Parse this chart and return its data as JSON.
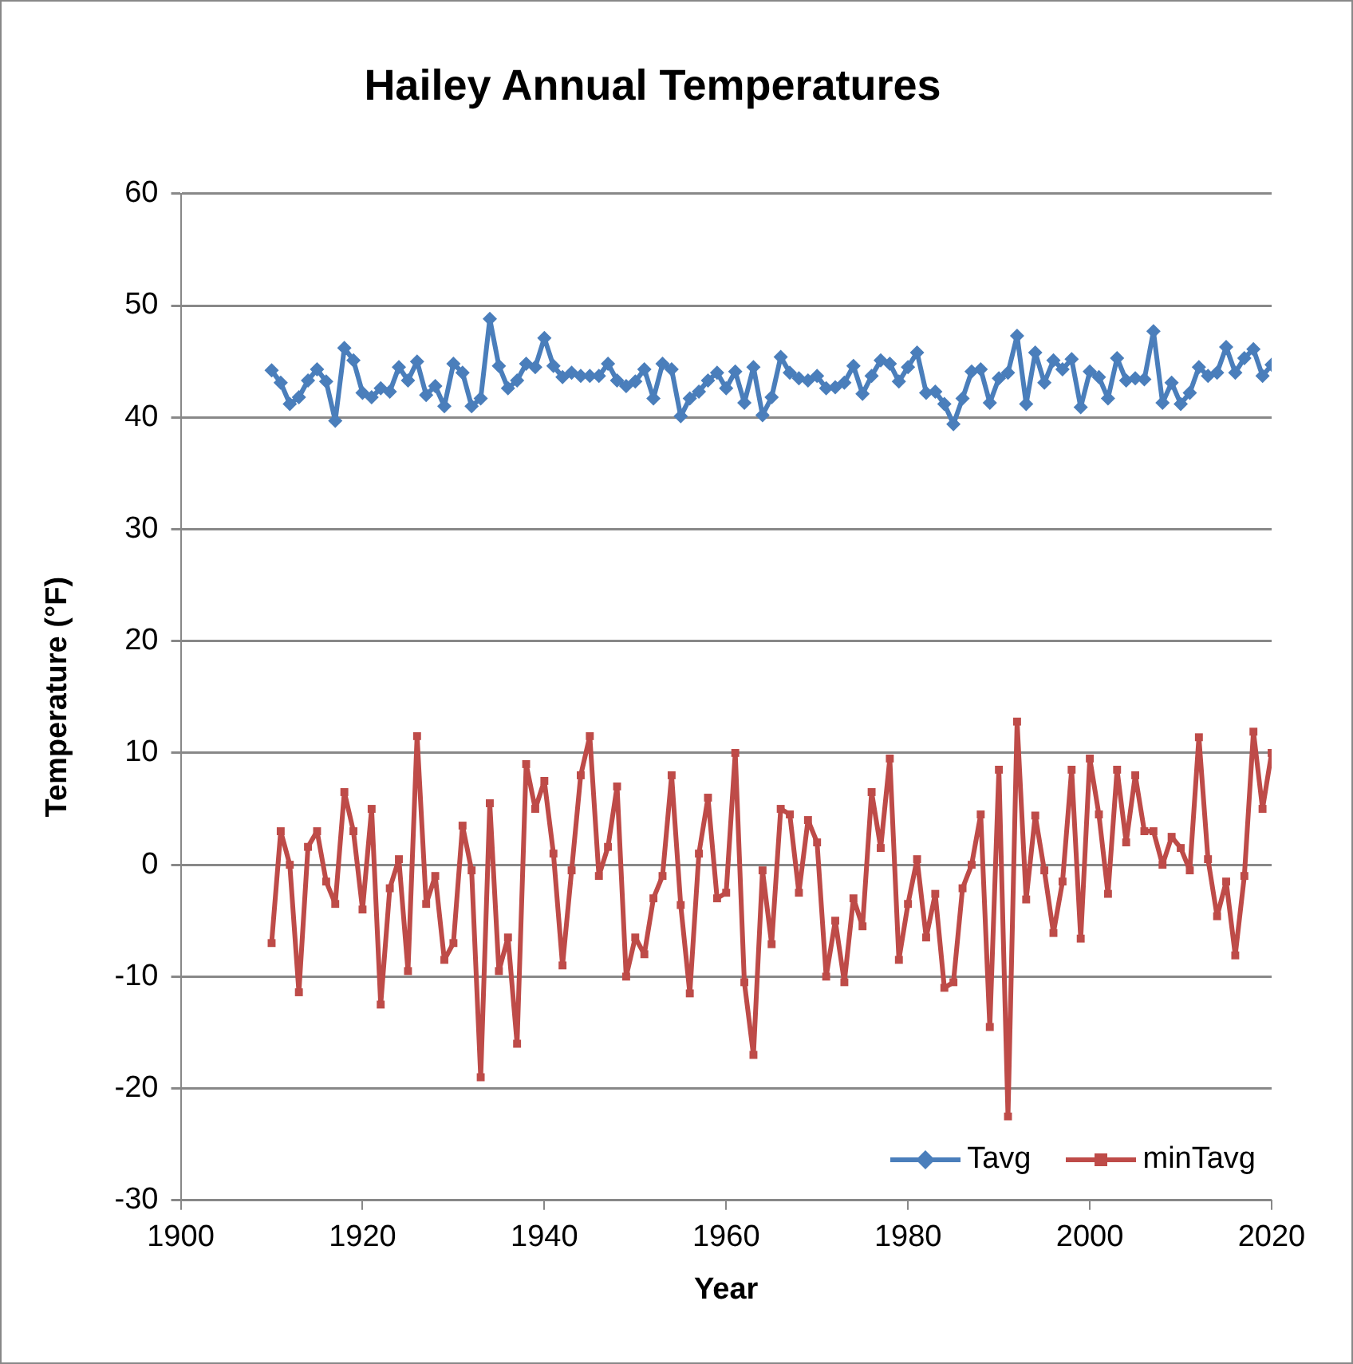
{
  "chart_data": {
    "type": "line",
    "title": "Hailey Annual Temperatures",
    "xlabel": "Year",
    "ylabel": "Temperature (°F)",
    "x": [
      1910,
      1911,
      1912,
      1913,
      1914,
      1915,
      1916,
      1917,
      1918,
      1919,
      1920,
      1921,
      1922,
      1923,
      1924,
      1925,
      1926,
      1927,
      1928,
      1929,
      1930,
      1931,
      1932,
      1933,
      1934,
      1935,
      1936,
      1937,
      1938,
      1939,
      1940,
      1941,
      1942,
      1943,
      1944,
      1945,
      1946,
      1947,
      1948,
      1949,
      1950,
      1951,
      1952,
      1953,
      1954,
      1955,
      1956,
      1957,
      1958,
      1959,
      1960,
      1961,
      1962,
      1963,
      1964,
      1965,
      1966,
      1967,
      1968,
      1969,
      1970,
      1971,
      1972,
      1973,
      1974,
      1975,
      1976,
      1977,
      1978,
      1979,
      1980,
      1981,
      1982,
      1983,
      1984,
      1985,
      1986,
      1987,
      1988,
      1989,
      1990,
      1991,
      1992,
      1993,
      1994,
      1995,
      1996,
      1997,
      1998,
      1999,
      2000,
      2001,
      2002,
      2003,
      2004,
      2005,
      2006,
      2007,
      2008,
      2009,
      2010,
      2011,
      2012,
      2013,
      2014,
      2015,
      2016,
      2017,
      2018,
      2019,
      2020
    ],
    "series": [
      {
        "name": "Tavg",
        "color": "#4a7ebb",
        "marker": "diamond",
        "values": [
          44.2,
          43.1,
          41.2,
          41.8,
          43.3,
          44.3,
          43.2,
          39.7,
          46.2,
          45.1,
          42.2,
          41.8,
          42.6,
          42.3,
          44.5,
          43.3,
          45.0,
          42.0,
          42.8,
          41.0,
          44.8,
          44.0,
          41.0,
          41.7,
          48.8,
          44.6,
          42.6,
          43.3,
          44.8,
          44.5,
          47.1,
          44.6,
          43.6,
          44.0,
          43.7,
          43.7,
          43.7,
          44.8,
          43.3,
          42.8,
          43.2,
          44.3,
          41.7,
          44.8,
          44.3,
          40.1,
          41.7,
          42.3,
          43.3,
          44.0,
          42.6,
          44.1,
          41.3,
          44.5,
          40.2,
          41.8,
          45.4,
          44.0,
          43.5,
          43.3,
          43.7,
          42.6,
          42.7,
          43.1,
          44.6,
          42.1,
          43.7,
          45.1,
          44.8,
          43.2,
          44.5,
          45.8,
          42.2,
          42.3,
          41.2,
          39.4,
          41.7,
          44.1,
          44.3,
          41.3,
          43.5,
          44.0,
          47.3,
          41.2,
          45.8,
          43.1,
          45.1,
          44.3,
          45.2,
          40.9,
          44.1,
          43.6,
          41.7,
          45.3,
          43.3,
          43.5,
          43.4,
          47.7,
          41.3,
          43.1,
          41.2,
          42.2,
          44.5,
          43.7,
          44.0,
          46.3,
          44.0,
          45.3,
          46.1,
          43.7,
          44.7
        ]
      },
      {
        "name": "minTavg",
        "color": "#be4b48",
        "marker": "square",
        "values": [
          -7.0,
          3.0,
          0,
          -11.4,
          1.6,
          3.0,
          -1.5,
          -3.5,
          6.5,
          3.0,
          -4.0,
          5.0,
          -12.5,
          -2.1,
          0.5,
          -9.5,
          11.5,
          -3.5,
          -1.0,
          -8.5,
          -7.0,
          3.5,
          -0.5,
          -19.0,
          5.5,
          -9.5,
          -6.5,
          -16.0,
          9.0,
          5.0,
          7.5,
          1.0,
          -9.0,
          -0.5,
          8.0,
          11.5,
          -1.0,
          1.6,
          7.0,
          -10.0,
          -6.5,
          -8.0,
          -3.0,
          -1.0,
          8.0,
          -3.6,
          -11.5,
          1.0,
          6.0,
          -3.0,
          -2.5,
          10.0,
          -10.5,
          -17.0,
          -0.5,
          -7.1,
          5.0,
          4.5,
          -2.5,
          4.0,
          2.0,
          -10.0,
          -5.0,
          -10.5,
          -3.0,
          -5.5,
          6.5,
          1.5,
          9.5,
          -8.5,
          -3.5,
          0.5,
          -6.5,
          -2.6,
          -11.0,
          -10.5,
          -2.1,
          0,
          4.5,
          -14.5,
          8.5,
          -22.5,
          12.8,
          -3.1,
          4.4,
          -0.5,
          -6.1,
          -1.5,
          8.5,
          -6.6,
          9.5,
          4.5,
          -2.6,
          8.5,
          2.0,
          8.0,
          3.0,
          3.0,
          0,
          2.5,
          1.5,
          -0.5,
          11.4,
          0.5,
          -4.6,
          -1.5,
          -8.1,
          -1.0,
          11.9,
          5.0,
          10.0
        ]
      }
    ],
    "xlim": [
      1900,
      2020
    ],
    "xticks": [
      1900,
      1920,
      1940,
      1960,
      1980,
      2000,
      2020
    ],
    "ylim": [
      -30,
      60
    ],
    "yticks": [
      -30,
      -20,
      -10,
      0,
      10,
      20,
      30,
      40,
      50,
      60
    ],
    "grid": "y",
    "legend": "bottom right",
    "line_style": "solid"
  }
}
